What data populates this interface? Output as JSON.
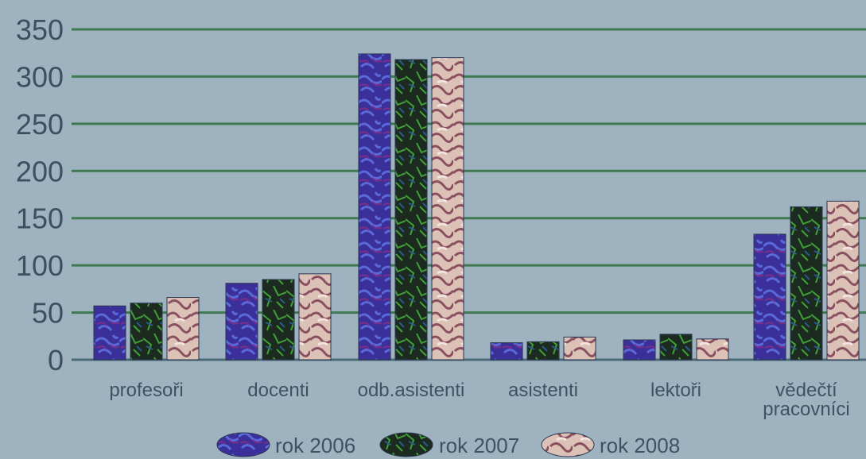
{
  "chart_data": {
    "type": "bar",
    "categories": [
      "profesoři",
      "docenti",
      "odb.asistenti",
      "asistenti",
      "lektoři",
      "vědečtí pracovníci"
    ],
    "category_lines": [
      [
        "profesoři"
      ],
      [
        "docenti"
      ],
      [
        "odb.asistenti"
      ],
      [
        "asistenti"
      ],
      [
        "lektoři"
      ],
      [
        "vědečtí",
        "pracovníci"
      ]
    ],
    "series": [
      {
        "name": "rok 2006",
        "values": [
          57,
          81,
          324,
          18,
          21,
          133
        ]
      },
      {
        "name": "rok 2007",
        "values": [
          60,
          85,
          318,
          19,
          27,
          162
        ]
      },
      {
        "name": "rok 2008",
        "values": [
          66,
          91,
          320,
          24,
          22,
          168
        ]
      }
    ],
    "ylim": [
      0,
      350
    ],
    "yticks": [
      0,
      50,
      100,
      150,
      200,
      250,
      300,
      350
    ],
    "grid": true,
    "legend": "bottom",
    "colors": {
      "background": "#9fb2c0",
      "grid": "#3f7a52",
      "series": [
        "#3b2f9a",
        "#1f3a22",
        "#d9bbb0"
      ],
      "series_accent": [
        "#5566d6",
        "#3fa038",
        "#8a5060"
      ]
    }
  }
}
